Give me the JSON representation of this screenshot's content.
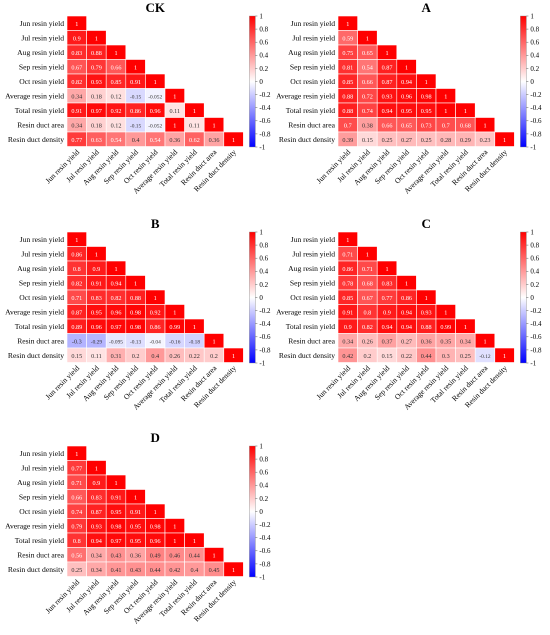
{
  "chart_data": [
    {
      "type": "heatmap",
      "title": "CK",
      "variables": [
        "Jun resin yield",
        "Jul resin yield",
        "Aug resin yield",
        "Sep resin yield",
        "Oct resin yield",
        "Average resin yield",
        "Total resin yield",
        "Resin duct area",
        "Resin duct density"
      ],
      "rows": [
        [
          "1"
        ],
        [
          "0.9",
          "1"
        ],
        [
          "0.83",
          "0.88",
          "1"
        ],
        [
          "0.67",
          "0.79",
          "0.66",
          "1"
        ],
        [
          "0.82",
          "0.93",
          "0.85",
          "0.91",
          "1"
        ],
        [
          "0.34",
          "0.18",
          "0.12",
          "-0.15",
          "-0.052",
          "1"
        ],
        [
          "0.91",
          "0.97",
          "0.92",
          "0.86",
          "0.96",
          "0.11",
          "1"
        ],
        [
          "0.34",
          "0.18",
          "0.12",
          "-0.15",
          "-0.052",
          "1",
          "0.11",
          "1"
        ],
        [
          "0.77",
          "0.63",
          "0.54",
          "0.4",
          "0.54",
          "0.36",
          "0.62",
          "0.36",
          "1"
        ]
      ],
      "scale_min": -1,
      "scale_max": 1,
      "colorbar_ticks": [
        "1",
        "0.8",
        "0.6",
        "0.4",
        "0.2",
        "0",
        "-0.2",
        "-0.4",
        "-0.6",
        "-0.8",
        "-1"
      ]
    },
    {
      "type": "heatmap",
      "title": "A",
      "variables": [
        "Jun resin yield",
        "Jul resin yield",
        "Aug resin yield",
        "Sep resin yield",
        "Oct resin yield",
        "Average resin yield",
        "Total resin yield",
        "Resin duct area",
        "Resin duct density"
      ],
      "rows": [
        [
          "1"
        ],
        [
          "0.59",
          "1"
        ],
        [
          "0.75",
          "0.65",
          "1"
        ],
        [
          "0.81",
          "0.54",
          "0.87",
          "1"
        ],
        [
          "0.85",
          "0.66",
          "0.87",
          "0.94",
          "1"
        ],
        [
          "0.88",
          "0.72",
          "0.93",
          "0.96",
          "0.98",
          "1"
        ],
        [
          "0.88",
          "0.74",
          "0.94",
          "0.95",
          "0.95",
          "1",
          "1"
        ],
        [
          "0.7",
          "0.38",
          "0.66",
          "0.65",
          "0.73",
          "0.7",
          "0.68",
          "1"
        ],
        [
          "0.39",
          "0.15",
          "0.25",
          "0.27",
          "0.25",
          "0.28",
          "0.29",
          "0.23",
          "1"
        ]
      ],
      "scale_min": -1,
      "scale_max": 1,
      "colorbar_ticks": [
        "1",
        "0.8",
        "0.6",
        "0.4",
        "0.2",
        "0",
        "-0.2",
        "-0.4",
        "-0.6",
        "-0.8",
        "-1"
      ]
    },
    {
      "type": "heatmap",
      "title": "B",
      "variables": [
        "Jun resin yield",
        "Jul resin yield",
        "Aug resin yield",
        "Sep resin yield",
        "Oct resin yield",
        "Average resin yield",
        "Total resin yield",
        "Resin duct area",
        "Resin duct density"
      ],
      "rows": [
        [
          "1"
        ],
        [
          "0.86",
          "1"
        ],
        [
          "0.8",
          "0.9",
          "1"
        ],
        [
          "0.82",
          "0.91",
          "0.94",
          "1"
        ],
        [
          "0.71",
          "0.83",
          "0.82",
          "0.88",
          "1"
        ],
        [
          "0.87",
          "0.95",
          "0.96",
          "0.98",
          "0.92",
          "1"
        ],
        [
          "0.89",
          "0.96",
          "0.97",
          "0.98",
          "0.86",
          "0.99",
          "1"
        ],
        [
          "-0.3",
          "-0.29",
          "-0.095",
          "-0.13",
          "-0.04",
          "-0.16",
          "-0.18",
          "1"
        ],
        [
          "0.15",
          "0.11",
          "0.31",
          "0.2",
          "0.4",
          "0.26",
          "0.22",
          "0.2",
          "1"
        ]
      ],
      "scale_min": -1,
      "scale_max": 1,
      "colorbar_ticks": [
        "1",
        "0.8",
        "0.6",
        "0.4",
        "0.2",
        "0",
        "-0.2",
        "-0.4",
        "-0.6",
        "-0.8",
        "-1"
      ]
    },
    {
      "type": "heatmap",
      "title": "C",
      "variables": [
        "Jun resin yield",
        "Jul resin yield",
        "Aug resin yield",
        "Sep resin yield",
        "Oct resin yield",
        "Average resin yield",
        "Total resin yield",
        "Resin duct area",
        "Resin duct density"
      ],
      "rows": [
        [
          "1"
        ],
        [
          "0.71",
          "1"
        ],
        [
          "0.86",
          "0.71",
          "1"
        ],
        [
          "0.78",
          "0.68",
          "0.83",
          "1"
        ],
        [
          "0.85",
          "0.67",
          "0.77",
          "0.86",
          "1"
        ],
        [
          "0.91",
          "0.8",
          "0.9",
          "0.94",
          "0.93",
          "1"
        ],
        [
          "0.9",
          "0.82",
          "0.94",
          "0.94",
          "0.88",
          "0.99",
          "1"
        ],
        [
          "0.34",
          "0.26",
          "0.37",
          "0.27",
          "0.36",
          "0.35",
          "0.34",
          "1"
        ],
        [
          "0.42",
          "0.2",
          "0.15",
          "0.22",
          "0.44",
          "0.3",
          "0.25",
          "-0.12",
          "1"
        ]
      ],
      "scale_min": -1,
      "scale_max": 1,
      "colorbar_ticks": [
        "1",
        "0.8",
        "0.6",
        "0.4",
        "0.2",
        "0",
        "-0.2",
        "-0.4",
        "-0.6",
        "-0.8",
        "-1"
      ]
    },
    {
      "type": "heatmap",
      "title": "D",
      "variables": [
        "Jun resin yield",
        "Jul resin yield",
        "Aug resin yield",
        "Sep resin yield",
        "Oct resin yield",
        "Average resin yield",
        "Total resin yield",
        "Resin duct area",
        "Resin duct density"
      ],
      "rows": [
        [
          "1"
        ],
        [
          "0.77",
          "1"
        ],
        [
          "0.71",
          "0.9",
          "1"
        ],
        [
          "0.66",
          "0.83",
          "0.91",
          "1"
        ],
        [
          "0.74",
          "0.87",
          "0.95",
          "0.91",
          "1"
        ],
        [
          "0.79",
          "0.93",
          "0.98",
          "0.95",
          "0.98",
          "1"
        ],
        [
          "0.8",
          "0.94",
          "0.97",
          "0.95",
          "0.96",
          "1",
          "1"
        ],
        [
          "0.56",
          "0.34",
          "0.43",
          "0.36",
          "0.49",
          "0.46",
          "0.44",
          "1"
        ],
        [
          "0.25",
          "0.34",
          "0.41",
          "0.43",
          "0.44",
          "0.42",
          "0.4",
          "0.45",
          "1"
        ]
      ],
      "scale_min": -1,
      "scale_max": 1,
      "colorbar_ticks": [
        "1",
        "0.8",
        "0.6",
        "0.4",
        "0.2",
        "0",
        "-0.2",
        "-0.4",
        "-0.6",
        "-0.8",
        "-1"
      ]
    }
  ]
}
